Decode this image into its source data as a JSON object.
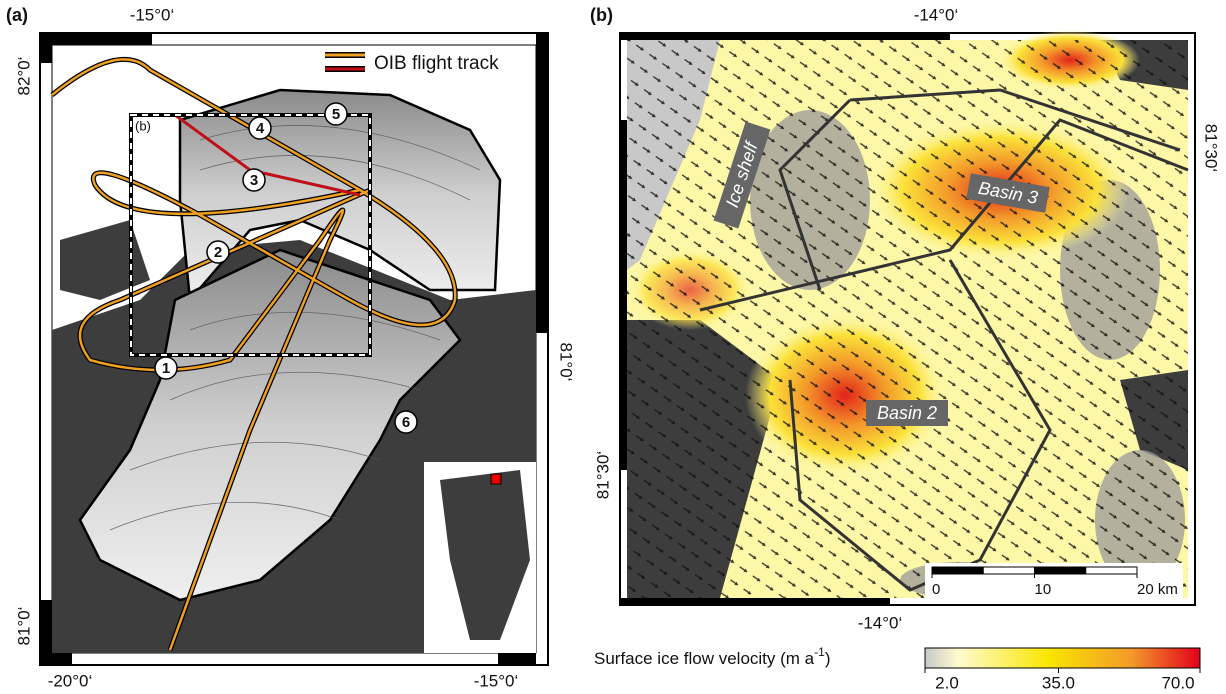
{
  "panel_a": {
    "label": "(a)",
    "lon_top": "-15°0‘",
    "lat_left_top": "82°0‘",
    "lat_left_bottom": "81°0‘",
    "lat_right": "81°0‘",
    "lon_bottom_left": "-20°0‘",
    "lon_bottom_right": "-15°0‘",
    "legend": "OIB flight track",
    "inset_label": "(b)",
    "sites": [
      "1",
      "2",
      "3",
      "4",
      "5",
      "6"
    ]
  },
  "panel_b": {
    "label": "(b)",
    "lon_top": "-14°0‘",
    "lon_bottom": "-14°0‘",
    "lat_left": "81°30‘",
    "lat_right": "81°30‘",
    "regions": [
      "Ice shelf",
      "Basin 3",
      "Basin 2"
    ],
    "scale_bar": {
      "ticks": [
        0,
        10,
        {
          "value": 20,
          "label": "20 km"
        }
      ]
    }
  },
  "colorbar": {
    "label_parts": [
      "Surface ice flow velocity (m a",
      "-1",
      ")"
    ],
    "ticks": [
      {
        "value": 2,
        "label": "2.0"
      },
      {
        "value": 35,
        "label": "35.0"
      },
      {
        "value": 70,
        "label": "70.0"
      }
    ]
  }
}
